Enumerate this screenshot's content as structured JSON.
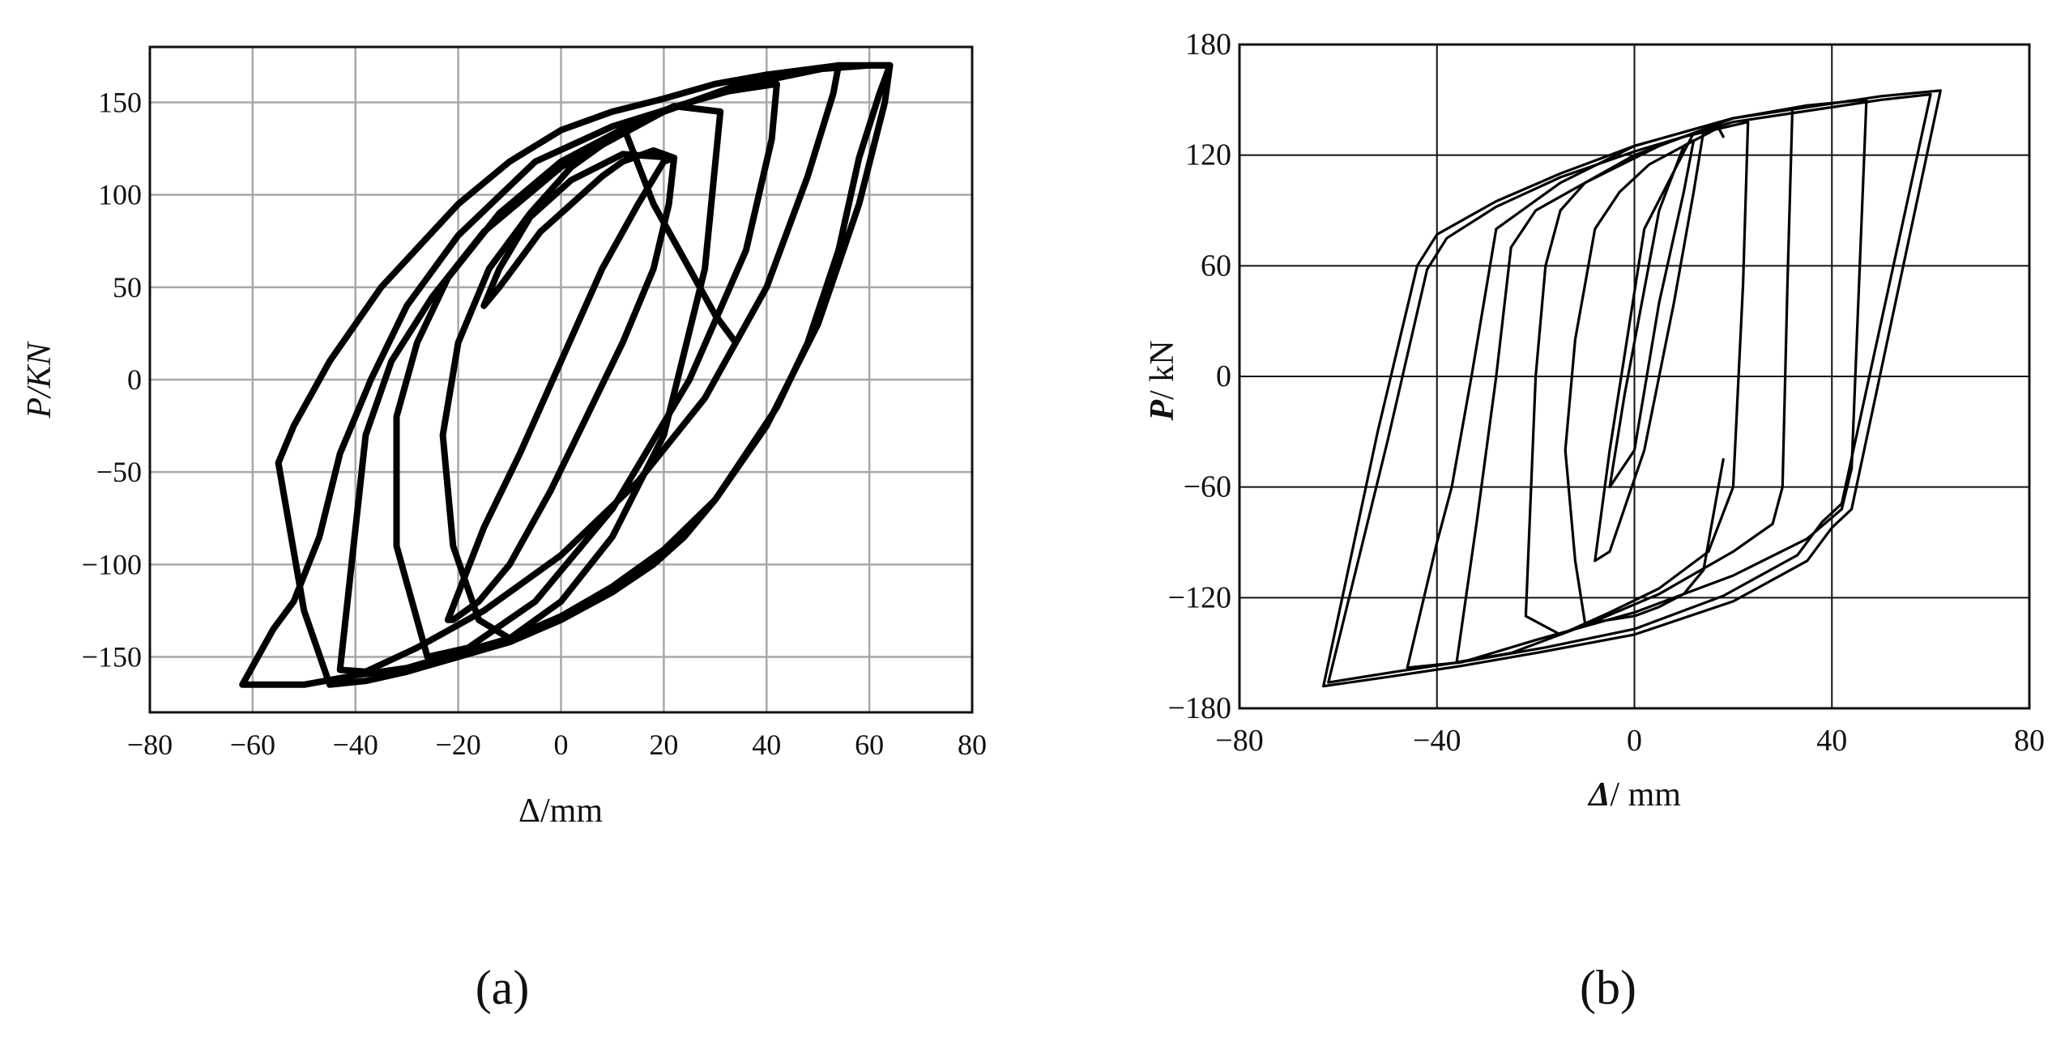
{
  "chart_data": [
    {
      "type": "line",
      "panel_label": "(a)",
      "xlabel": "Δ/mm",
      "ylabel": "P/KN",
      "xlim": [
        -80,
        80
      ],
      "ylim": [
        -180,
        180
      ],
      "xticks": [
        -80,
        -60,
        -40,
        -20,
        0,
        20,
        40,
        60,
        80
      ],
      "yticks": [
        -150,
        -100,
        -50,
        0,
        50,
        100,
        150
      ],
      "x_tick_labels": [
        "−80",
        "−60",
        "−40",
        "−20",
        "0",
        "20",
        "40",
        "60",
        "80"
      ],
      "y_tick_labels": [
        "−150",
        "−100",
        "−50",
        "0",
        "50",
        "100",
        "150"
      ],
      "grid": true,
      "series": [
        {
          "x": [
            -22,
            -15,
            -8,
            0,
            8,
            15,
            20,
            22,
            21,
            18,
            12,
            5,
            -2,
            -10,
            -16,
            -21,
            -22
          ],
          "y": [
            -130,
            -80,
            -40,
            10,
            60,
            95,
            118,
            120,
            95,
            60,
            20,
            -20,
            -60,
            -100,
            -120,
            -130,
            -130
          ]
        },
        {
          "x": [
            22,
            12,
            2,
            -6,
            -12,
            -15,
            -12,
            -8,
            -4,
            2,
            8,
            12,
            18,
            22
          ],
          "y": [
            120,
            122,
            108,
            88,
            60,
            40,
            50,
            65,
            80,
            95,
            110,
            118,
            124,
            120
          ]
        },
        {
          "x": [
            31,
            22,
            12,
            2,
            -6,
            -14,
            -20,
            -23,
            -21,
            -16,
            -10,
            0,
            10,
            20,
            28,
            31
          ],
          "y": [
            145,
            148,
            135,
            115,
            90,
            60,
            20,
            -30,
            -90,
            -130,
            -140,
            -120,
            -85,
            -30,
            60,
            145
          ]
        },
        {
          "x": [
            42,
            30,
            15,
            0,
            -12,
            -22,
            -28,
            -32,
            -32,
            -26,
            -18,
            -5,
            10,
            25,
            36,
            41,
            42
          ],
          "y": [
            160,
            155,
            140,
            118,
            90,
            55,
            20,
            -20,
            -90,
            -150,
            -145,
            -120,
            -70,
            0,
            70,
            130,
            160
          ]
        },
        {
          "x": [
            54,
            40,
            20,
            0,
            -15,
            -25,
            -33,
            -38,
            -43,
            -38,
            -28,
            -15,
            0,
            15,
            28,
            40,
            48,
            53,
            54
          ],
          "y": [
            170,
            165,
            145,
            115,
            80,
            45,
            10,
            -30,
            -157,
            -158,
            -145,
            -125,
            -95,
            -55,
            -10,
            50,
            110,
            155,
            170
          ]
        },
        {
          "x": [
            64,
            60,
            50,
            40,
            30,
            20,
            10,
            0,
            -10,
            -20,
            -35,
            -45,
            -52,
            -55,
            -50,
            -45,
            -38,
            -30,
            -20,
            -10,
            0,
            10,
            18,
            24,
            30,
            36,
            42,
            48,
            54,
            58,
            62,
            64
          ],
          "y": [
            170,
            170,
            168,
            165,
            160,
            152,
            145,
            135,
            118,
            95,
            50,
            10,
            -25,
            -45,
            -125,
            -165,
            -163,
            -158,
            -150,
            -142,
            -130,
            -115,
            -100,
            -85,
            -65,
            -40,
            -15,
            20,
            70,
            120,
            155,
            170
          ]
        },
        {
          "x": [
            64,
            54,
            40,
            25,
            10,
            -5,
            -20,
            -30,
            -37,
            -43,
            -47,
            -52,
            -56,
            -62,
            -50,
            -40,
            -30,
            -20,
            -10,
            0,
            10,
            20,
            30,
            40,
            50,
            58,
            63,
            64
          ],
          "y": [
            170,
            170,
            162,
            150,
            137,
            118,
            78,
            40,
            0,
            -40,
            -85,
            -120,
            -135,
            -165,
            -165,
            -160,
            -156,
            -148,
            -140,
            -128,
            -112,
            -92,
            -65,
            -25,
            30,
            95,
            150,
            170
          ]
        },
        {
          "x": [
            12,
            18,
            25,
            30,
            34
          ],
          "y": [
            138,
            95,
            60,
            35,
            20
          ]
        }
      ]
    },
    {
      "type": "line",
      "panel_label": "(b)",
      "xlabel_symbol": "Δ",
      "xlabel_unit": "/ mm",
      "ylabel_symbol": "P",
      "ylabel_unit": "/ kN",
      "xlim": [
        -80,
        80
      ],
      "ylim": [
        -180,
        180
      ],
      "xticks": [
        -80,
        -40,
        0,
        40,
        80
      ],
      "yticks": [
        -180,
        -120,
        -60,
        0,
        60,
        120,
        180
      ],
      "x_tick_labels": [
        "−80",
        "−40",
        "0",
        "40",
        "80"
      ],
      "y_tick_labels": [
        "−180",
        "−120",
        "−60",
        "0",
        "60",
        "120",
        "180"
      ],
      "grid": true,
      "series": [
        {
          "x": [
            -5,
            -2,
            5,
            10,
            12,
            10,
            5,
            0,
            -5
          ],
          "y": [
            -60,
            -10,
            90,
            125,
            128,
            100,
            40,
            -40,
            -60
          ]
        },
        {
          "x": [
            -8,
            -5,
            2,
            12,
            14,
            12,
            8,
            2,
            -5,
            -8
          ],
          "y": [
            -100,
            -40,
            80,
            132,
            133,
            100,
            40,
            -40,
            -95,
            -100
          ]
        },
        {
          "x": [
            18,
            14,
            10,
            5,
            0,
            -5,
            -10,
            -12,
            -14,
            -12,
            -8,
            -3,
            3,
            10,
            15,
            17,
            18
          ],
          "y": [
            -45,
            -105,
            -118,
            -125,
            -130,
            -132,
            -134,
            -100,
            -40,
            20,
            80,
            100,
            115,
            125,
            132,
            135,
            130
          ]
        },
        {
          "x": [
            23,
            10,
            0,
            -10,
            -15,
            -18,
            -20,
            -22,
            -15,
            -5,
            5,
            15,
            20,
            22,
            23
          ],
          "y": [
            138,
            130,
            120,
            105,
            90,
            60,
            0,
            -130,
            -140,
            -128,
            -115,
            -95,
            -60,
            50,
            138
          ]
        },
        {
          "x": [
            32,
            20,
            5,
            -10,
            -20,
            -25,
            -28,
            -32,
            -36,
            -25,
            -10,
            5,
            20,
            28,
            30,
            31,
            32
          ],
          "y": [
            145,
            140,
            125,
            105,
            90,
            70,
            0,
            -80,
            -155,
            -150,
            -135,
            -118,
            -95,
            -80,
            -60,
            50,
            145
          ]
        },
        {
          "x": [
            47,
            35,
            20,
            0,
            -15,
            -28,
            -33,
            -37,
            -40,
            -46,
            -35,
            -20,
            0,
            20,
            35,
            42,
            44,
            47
          ],
          "y": [
            150,
            147,
            140,
            125,
            105,
            80,
            0,
            -60,
            -90,
            -158,
            -155,
            -143,
            -128,
            -108,
            -88,
            -72,
            -50,
            150
          ]
        },
        {
          "x": [
            62,
            50,
            35,
            20,
            0,
            -15,
            -28,
            -40,
            -44,
            -52,
            -63,
            -50,
            -35,
            -20,
            0,
            20,
            35,
            40,
            44,
            62
          ],
          "y": [
            155,
            152,
            146,
            140,
            125,
            110,
            95,
            77,
            60,
            -30,
            -168,
            -163,
            -157,
            -150,
            -140,
            -122,
            -100,
            -82,
            -72,
            155
          ]
        },
        {
          "x": [
            60,
            50,
            35,
            20,
            0,
            -15,
            -28,
            -38,
            -42,
            -50,
            -62,
            -48,
            -33,
            -18,
            0,
            18,
            33,
            38,
            42,
            60
          ],
          "y": [
            153,
            150,
            144,
            138,
            122,
            108,
            92,
            75,
            58,
            -35,
            -166,
            -160,
            -154,
            -147,
            -137,
            -119,
            -97,
            -79,
            -69,
            153
          ]
        }
      ]
    }
  ]
}
